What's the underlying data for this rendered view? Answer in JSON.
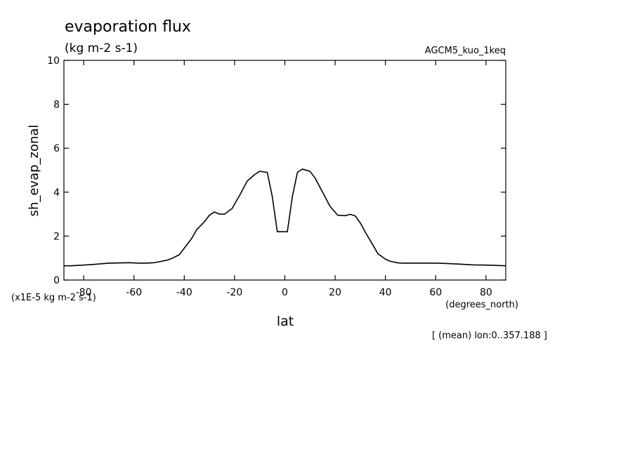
{
  "chart_data": {
    "type": "line",
    "title": "evaporation flux",
    "subtitle": "(kg m-2 s-1)",
    "dataset_label": "AGCM5_kuo_1keq",
    "xlabel": "lat",
    "x_units": "(degrees_north)",
    "ylabel": "sh_evap_zonal",
    "y_units": "(x1E-5 kg m-2 s-1)",
    "footnote": "[ (mean) lon:0..357.188 ]",
    "xlim": [
      -87.86,
      87.86
    ],
    "ylim": [
      0,
      10
    ],
    "x_ticks": [
      -80,
      -60,
      -40,
      -20,
      0,
      20,
      40,
      60,
      80
    ],
    "x_tick_labels": [
      "-80",
      "-60",
      "-40",
      "-20",
      "0",
      "20",
      "40",
      "60",
      "80"
    ],
    "y_ticks": [
      0,
      2,
      4,
      6,
      8,
      10
    ],
    "y_tick_labels": [
      "0",
      "2",
      "4",
      "6",
      "8",
      "10"
    ],
    "grid": false,
    "series": [
      {
        "x": [
          -87.86,
          -85,
          -82,
          -80,
          -75,
          -70,
          -65,
          -62,
          -60,
          -58,
          -55,
          -52,
          -50,
          -47,
          -45,
          -42,
          -40,
          -37,
          -35,
          -32,
          -30,
          -28,
          -26,
          -24,
          -21,
          -18,
          -15,
          -12,
          -10,
          -7,
          -5,
          -3,
          -1,
          1,
          3,
          5,
          7,
          10,
          12,
          15,
          18,
          21,
          24,
          26,
          28,
          30,
          32,
          35,
          37,
          40,
          42,
          45,
          47,
          50,
          52,
          55,
          60,
          65,
          70,
          75,
          80,
          85,
          87.86
        ],
        "y": [
          0.65,
          0.65,
          0.67,
          0.68,
          0.72,
          0.77,
          0.78,
          0.79,
          0.78,
          0.77,
          0.77,
          0.79,
          0.83,
          0.9,
          0.98,
          1.15,
          1.45,
          1.9,
          2.3,
          2.65,
          2.95,
          3.1,
          3.0,
          3.0,
          3.25,
          3.85,
          4.5,
          4.8,
          4.95,
          4.9,
          3.8,
          2.2,
          2.2,
          2.2,
          3.8,
          4.9,
          5.05,
          4.95,
          4.65,
          4.0,
          3.35,
          2.95,
          2.93,
          2.99,
          2.92,
          2.6,
          2.18,
          1.6,
          1.2,
          0.95,
          0.85,
          0.78,
          0.77,
          0.77,
          0.77,
          0.77,
          0.77,
          0.75,
          0.72,
          0.69,
          0.68,
          0.66,
          0.65
        ]
      }
    ],
    "colors": {
      "line": "#000000",
      "axes": "#000000",
      "background": "#ffffff"
    }
  }
}
